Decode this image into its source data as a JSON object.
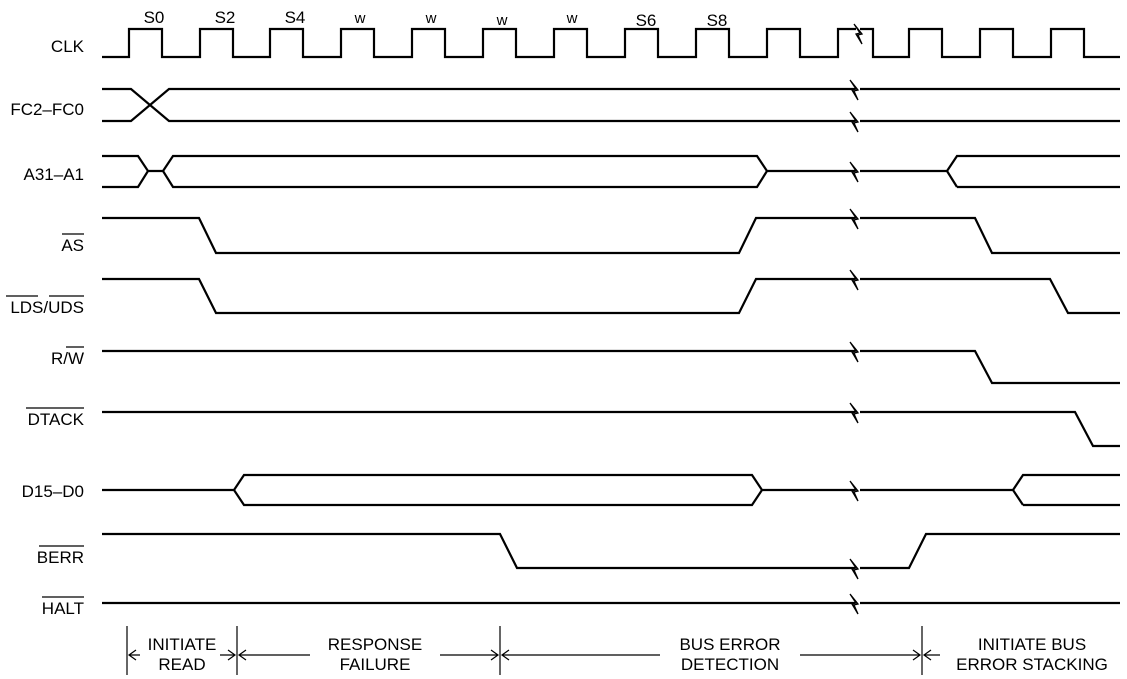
{
  "signals": [
    {
      "id": "clk",
      "label": "CLK",
      "overbar": false
    },
    {
      "id": "fc",
      "label": "FC2–FC0",
      "overbar": false
    },
    {
      "id": "addr",
      "label": "A31–A1",
      "overbar": false
    },
    {
      "id": "as",
      "label": "AS",
      "overbar": true
    },
    {
      "id": "lds",
      "label": "LDS/UDS",
      "overbar": true
    },
    {
      "id": "rw",
      "label": "R/W",
      "overbar": false,
      "partial_overbar": "W"
    },
    {
      "id": "dtack",
      "label": "DTACK",
      "overbar": true
    },
    {
      "id": "data",
      "label": "D15–D0",
      "overbar": false
    },
    {
      "id": "berr",
      "label": "BERR",
      "overbar": true
    },
    {
      "id": "halt",
      "label": "HALT",
      "overbar": true
    }
  ],
  "clock_states": [
    "S0",
    "S2",
    "S4",
    "w",
    "w",
    "w",
    "w",
    "S6",
    "S8"
  ],
  "phases": [
    {
      "id": "initiate-read",
      "lines": [
        "INITIATE",
        "READ"
      ]
    },
    {
      "id": "response-failure",
      "lines": [
        "RESPONSE",
        "FAILURE"
      ]
    },
    {
      "id": "bus-error-detection",
      "lines": [
        "BUS ERROR",
        "DETECTION"
      ]
    },
    {
      "id": "initiate-bus-error-stacking",
      "lines": [
        "INITIATE BUS",
        "ERROR STACKING"
      ]
    }
  ]
}
